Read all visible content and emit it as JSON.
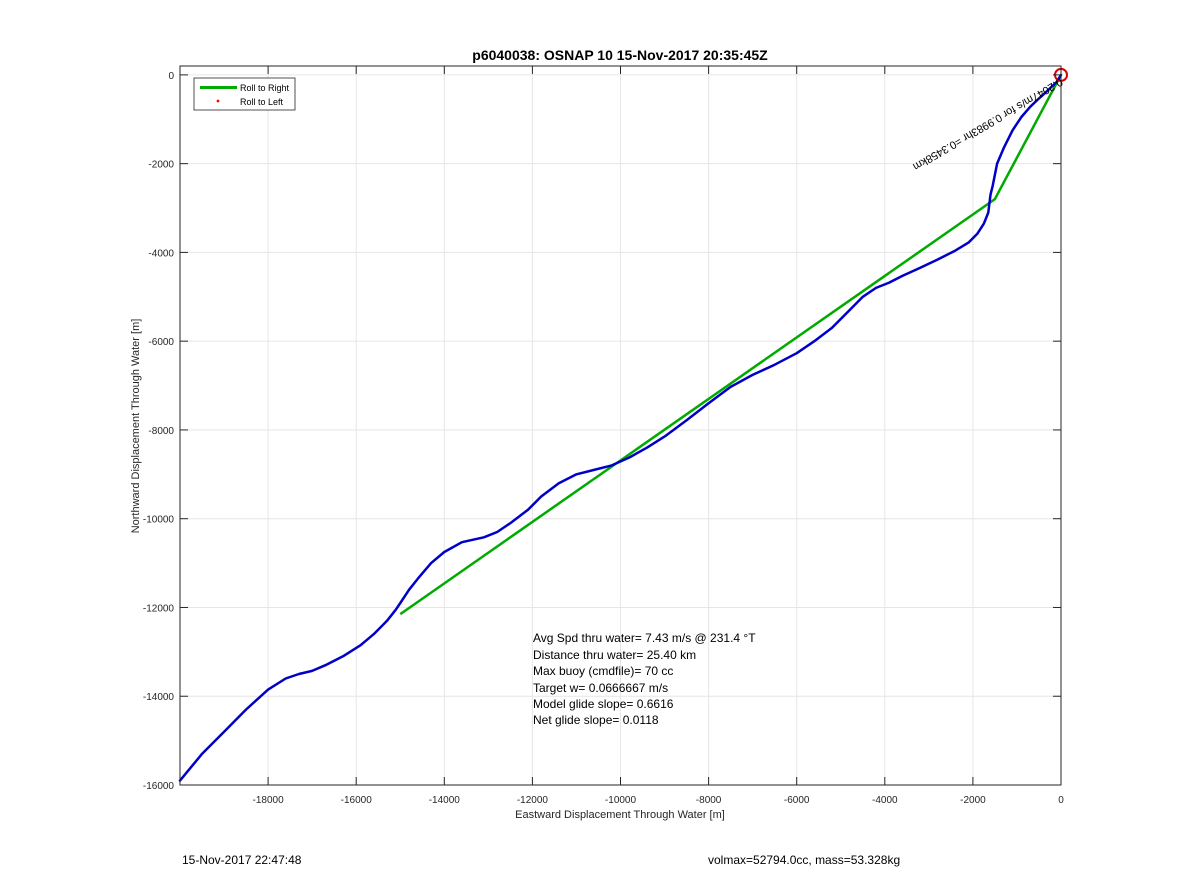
{
  "chart_data": {
    "type": "line",
    "title": "p6040038: OSNAP 10 15-Nov-2017 20:35:45Z",
    "xlabel": "Eastward Displacement Through Water [m]",
    "ylabel": "Northward Displacement Through Water [m]",
    "xlim": [
      -20000,
      0
    ],
    "ylim": [
      -16000,
      200
    ],
    "xticks": [
      -18000,
      -16000,
      -14000,
      -12000,
      -10000,
      -8000,
      -6000,
      -4000,
      -2000,
      0
    ],
    "yticks": [
      0,
      -2000,
      -4000,
      -6000,
      -8000,
      -10000,
      -12000,
      -14000,
      -16000
    ],
    "grid": true,
    "legend_position": "top-left",
    "legend": [
      {
        "label": "Roll to Right",
        "color": "#00aa00",
        "style": "line"
      },
      {
        "label": "Roll to Left",
        "color": "#ff0000",
        "style": "dot"
      }
    ],
    "series": [
      {
        "color": "#0000c8",
        "x": [
          -20000,
          -19500,
          -19000,
          -18500,
          -18000,
          -17600,
          -17300,
          -17000,
          -16700,
          -16300,
          -15900,
          -15600,
          -15300,
          -15100,
          -15000,
          -14800,
          -14600,
          -14300,
          -14000,
          -13600,
          -13100,
          -12800,
          -12500,
          -12100,
          -11800,
          -11400,
          -11000,
          -10600,
          -10200,
          -9800,
          -9400,
          -9000,
          -8500,
          -8000,
          -7500,
          -7000,
          -6500,
          -6000,
          -5600,
          -5200,
          -4800,
          -4500,
          -4200,
          -3900,
          -3600,
          -3200,
          -2800,
          -2400,
          -2100,
          -1900,
          -1750,
          -1650,
          -1600,
          -1550,
          -1450,
          -1300,
          -1100,
          -900,
          -700,
          -500,
          -300,
          -100,
          0
        ],
        "y": [
          -15900,
          -15300,
          -14800,
          -14300,
          -13850,
          -13600,
          -13500,
          -13430,
          -13300,
          -13100,
          -12850,
          -12600,
          -12300,
          -12050,
          -11900,
          -11600,
          -11350,
          -11000,
          -10750,
          -10530,
          -10420,
          -10300,
          -10100,
          -9800,
          -9500,
          -9200,
          -9000,
          -8900,
          -8800,
          -8620,
          -8400,
          -8150,
          -7780,
          -7400,
          -7030,
          -6760,
          -6530,
          -6270,
          -6000,
          -5700,
          -5300,
          -5000,
          -4800,
          -4680,
          -4530,
          -4350,
          -4160,
          -3960,
          -3780,
          -3580,
          -3350,
          -3100,
          -2700,
          -2500,
          -2000,
          -1650,
          -1250,
          -950,
          -720,
          -530,
          -350,
          -160,
          0
        ]
      },
      {
        "color": "#00aa00",
        "x": [
          -15000,
          -1500,
          0
        ],
        "y": [
          -12150,
          -2800,
          0
        ]
      }
    ],
    "marker": {
      "x": 0,
      "y": 0,
      "color": "#dd0000"
    },
    "rotated_annotation": "0.2047m/s for 0.9983hr =0.3458km",
    "stats": [
      "Avg Spd thru water=  7.43 m/s @ 231.4 °T",
      "Distance thru water= 25.40 km",
      "Max buoy (cmdfile)= 70 cc",
      "Target w= 0.0666667 m/s",
      "Model glide slope= 0.6616",
      "Net glide slope= 0.0118"
    ]
  },
  "footer": {
    "left": "15-Nov-2017 22:47:48",
    "right": "volmax=52794.0cc, mass=53.328kg"
  }
}
